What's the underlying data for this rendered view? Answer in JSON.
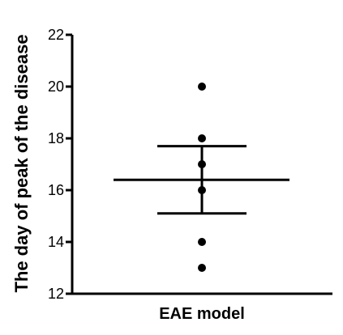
{
  "chart_data": {
    "type": "scatter",
    "ylabel": "The day of peak of the disease",
    "xlabel": "",
    "categories": [
      "EAE model"
    ],
    "ylim": [
      12,
      22
    ],
    "yticks": [
      12,
      14,
      16,
      18,
      20,
      22
    ],
    "grid": false,
    "legend": "none",
    "series": [
      {
        "category": "EAE model",
        "points": [
          20,
          18,
          17,
          16,
          14,
          13
        ],
        "mean": 16.4,
        "error_upper": 17.7,
        "error_lower": 15.1
      }
    ],
    "colors": {
      "points": "#000000",
      "axis": "#000000"
    }
  }
}
